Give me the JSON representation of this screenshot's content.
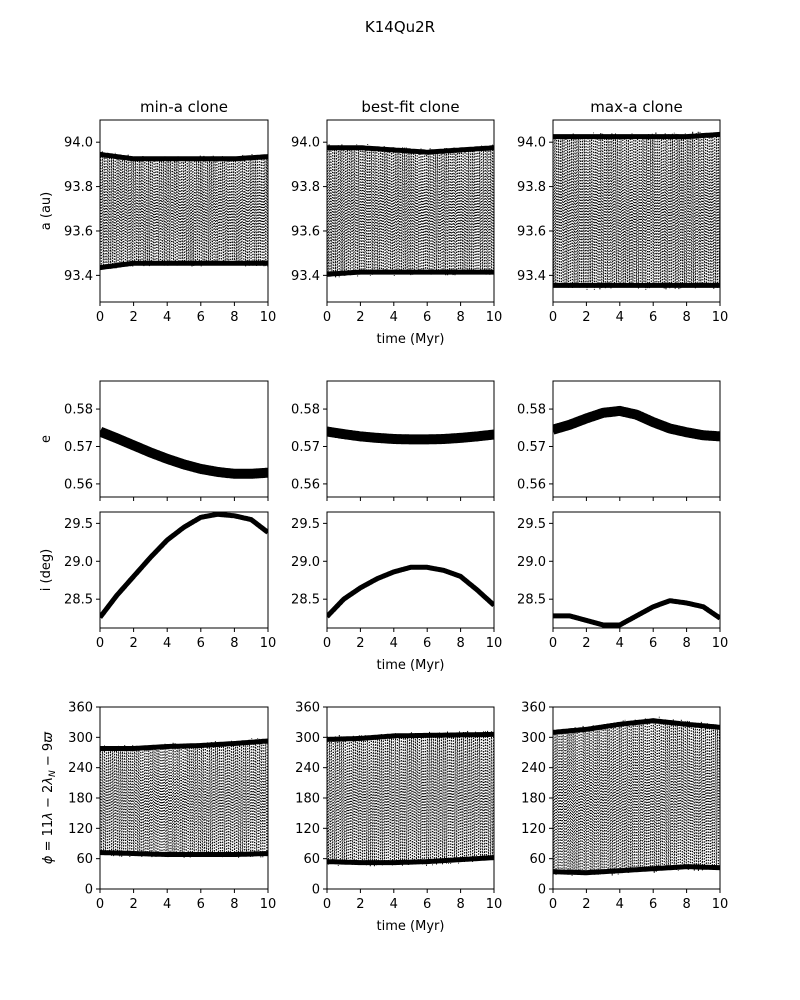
{
  "figure": {
    "suptitle": "K14Qu2R",
    "columns": [
      "min-a clone",
      "best-fit clone",
      "max-a clone"
    ]
  },
  "chart_data": [
    {
      "type": "line",
      "row": "a",
      "ylabel": "a (au)",
      "xlabel": "time (Myr)",
      "xlim": [
        0,
        10
      ],
      "ylim": [
        93.28,
        94.1
      ],
      "xticks": [
        "0",
        "2",
        "4",
        "6",
        "8",
        "10"
      ],
      "yticks": [
        "93.4",
        "93.6",
        "93.8",
        "94.0"
      ],
      "yticks_values": [
        93.4,
        93.6,
        93.8,
        94.0
      ],
      "series": [
        {
          "clone": 0,
          "t": [
            0,
            2,
            4,
            6,
            8,
            10
          ],
          "upper": [
            93.95,
            93.93,
            93.93,
            93.93,
            93.93,
            93.94
          ],
          "lower": [
            93.43,
            93.45,
            93.45,
            93.45,
            93.45,
            93.45
          ]
        },
        {
          "clone": 1,
          "t": [
            0,
            2,
            4,
            6,
            8,
            10
          ],
          "upper": [
            93.98,
            93.98,
            93.97,
            93.96,
            93.97,
            93.98
          ],
          "lower": [
            93.4,
            93.41,
            93.41,
            93.41,
            93.41,
            93.41
          ]
        },
        {
          "clone": 2,
          "t": [
            0,
            2,
            4,
            6,
            8,
            10
          ],
          "upper": [
            94.03,
            94.03,
            94.03,
            94.03,
            94.03,
            94.04
          ],
          "lower": [
            93.35,
            93.35,
            93.35,
            93.35,
            93.35,
            93.35
          ]
        }
      ]
    },
    {
      "type": "line",
      "row": "e",
      "ylabel": "e",
      "xlim": [
        0,
        10
      ],
      "ylim": [
        0.5565,
        0.5875
      ],
      "yticks": [
        "0.56",
        "0.57",
        "0.58"
      ],
      "yticks_values": [
        0.56,
        0.57,
        0.58
      ],
      "series": [
        {
          "clone": 0,
          "t": [
            0,
            1,
            2,
            3,
            4,
            5,
            6,
            7,
            8,
            9,
            10
          ],
          "e": [
            0.574,
            0.5722,
            0.5703,
            0.5684,
            0.5667,
            0.5652,
            0.564,
            0.5632,
            0.5627,
            0.5627,
            0.563
          ]
        },
        {
          "clone": 1,
          "t": [
            0,
            1,
            2,
            3,
            4,
            5,
            6,
            7,
            8,
            9,
            10
          ],
          "e": [
            0.574,
            0.5733,
            0.5727,
            0.5723,
            0.572,
            0.5719,
            0.5719,
            0.572,
            0.5723,
            0.5727,
            0.5732
          ]
        },
        {
          "clone": 2,
          "t": [
            0,
            1,
            2,
            3,
            4,
            5,
            6,
            7,
            8,
            9,
            10
          ],
          "e": [
            0.5745,
            0.5758,
            0.5775,
            0.579,
            0.5795,
            0.5785,
            0.5765,
            0.5748,
            0.5738,
            0.573,
            0.5727
          ]
        }
      ]
    },
    {
      "type": "line",
      "row": "i",
      "ylabel": "i (deg)",
      "xlabel": "time (Myr)",
      "xlim": [
        0,
        10
      ],
      "ylim": [
        28.12,
        29.65
      ],
      "yticks": [
        "28.5",
        "29.0",
        "29.5"
      ],
      "yticks_values": [
        28.5,
        29.0,
        29.5
      ],
      "series": [
        {
          "clone": 0,
          "t": [
            0,
            1,
            2,
            3,
            4,
            5,
            6,
            7,
            8,
            9,
            10
          ],
          "i": [
            28.26,
            28.55,
            28.8,
            29.05,
            29.28,
            29.45,
            29.58,
            29.62,
            29.6,
            29.55,
            29.38
          ]
        },
        {
          "clone": 1,
          "t": [
            0,
            1,
            2,
            3,
            4,
            5,
            6,
            7,
            8,
            9,
            10
          ],
          "i": [
            28.27,
            28.5,
            28.65,
            28.77,
            28.86,
            28.92,
            28.92,
            28.88,
            28.8,
            28.62,
            28.42
          ]
        },
        {
          "clone": 2,
          "t": [
            0,
            1,
            2,
            3,
            4,
            5,
            6,
            7,
            8,
            9,
            10
          ],
          "i": [
            28.28,
            28.28,
            28.22,
            28.16,
            28.16,
            28.28,
            28.4,
            28.48,
            28.45,
            28.4,
            28.25
          ]
        }
      ]
    },
    {
      "type": "line",
      "row": "phi",
      "ylabel": "ϕ = 11λ − 2λ_N − 9ϖ",
      "xlabel": "time (Myr)",
      "xlim": [
        0,
        10
      ],
      "ylim": [
        0,
        360
      ],
      "yticks": [
        "0",
        "60",
        "120",
        "180",
        "240",
        "300",
        "360"
      ],
      "yticks_values": [
        0,
        60,
        120,
        180,
        240,
        300,
        360
      ],
      "series": [
        {
          "clone": 0,
          "t": [
            0,
            2,
            4,
            6,
            8,
            10
          ],
          "upper": [
            280,
            280,
            284,
            286,
            290,
            295
          ],
          "lower": [
            70,
            68,
            66,
            66,
            66,
            68
          ]
        },
        {
          "clone": 1,
          "t": [
            0,
            2,
            4,
            6,
            8,
            10
          ],
          "upper": [
            298,
            300,
            305,
            306,
            307,
            308
          ],
          "lower": [
            52,
            50,
            50,
            52,
            56,
            60
          ]
        },
        {
          "clone": 2,
          "t": [
            0,
            2,
            4,
            6,
            8,
            10
          ],
          "upper": [
            312,
            318,
            328,
            335,
            328,
            322
          ],
          "lower": [
            32,
            30,
            34,
            38,
            42,
            40
          ]
        }
      ]
    }
  ]
}
